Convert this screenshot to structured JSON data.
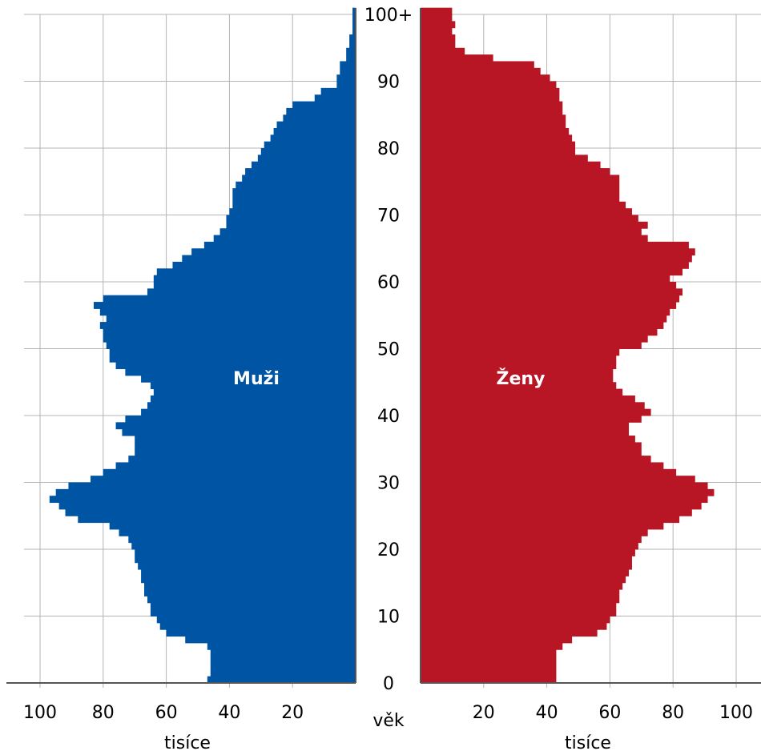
{
  "chart_data": {
    "type": "bar",
    "orientation": "horizontal-population-pyramid",
    "age_axis": {
      "label": "věk",
      "min": 0,
      "max": 100,
      "top_label": "100+",
      "ticks": [
        "0",
        "10",
        "20",
        "30",
        "40",
        "50",
        "60",
        "70",
        "80",
        "90",
        "100+"
      ]
    },
    "value_axis": {
      "label": "tisíce",
      "range": [
        0,
        100
      ],
      "ticks": [
        "20",
        "40",
        "60",
        "80",
        "100"
      ]
    },
    "grid": true,
    "colors": {
      "men": "#0054a4",
      "women": "#b81624",
      "grid": "#b4b4b4",
      "axis": "#555555"
    },
    "series": [
      {
        "name": "Muži",
        "values": [
          47,
          46,
          46,
          46,
          46,
          47,
          54,
          60,
          62,
          63,
          65,
          65,
          66,
          67,
          67,
          68,
          68,
          69,
          70,
          70,
          71,
          72,
          75,
          78,
          88,
          92,
          94,
          97,
          95,
          91,
          84,
          80,
          76,
          72,
          70,
          70,
          70,
          74,
          76,
          73,
          68,
          66,
          65,
          64,
          65,
          68,
          73,
          76,
          78,
          78,
          79,
          80,
          80,
          81,
          79,
          81,
          83,
          80,
          66,
          64,
          64,
          63,
          58,
          55,
          52,
          48,
          45,
          43,
          41,
          41,
          40,
          39,
          39,
          39,
          38,
          36,
          35,
          33,
          31,
          30,
          29,
          27,
          26,
          25,
          23,
          22,
          20,
          13,
          11,
          6,
          6,
          5,
          5,
          3,
          3,
          2,
          2,
          1,
          1,
          1,
          1
        ]
      },
      {
        "name": "Ženy",
        "values": [
          43,
          43,
          43,
          43,
          43,
          45,
          48,
          56,
          59,
          60,
          62,
          62,
          63,
          63,
          64,
          65,
          66,
          67,
          67,
          68,
          69,
          70,
          72,
          77,
          82,
          86,
          89,
          91,
          93,
          91,
          87,
          81,
          77,
          73,
          70,
          70,
          68,
          66,
          66,
          70,
          73,
          71,
          68,
          64,
          62,
          61,
          61,
          62,
          62,
          63,
          70,
          72,
          75,
          77,
          78,
          79,
          81,
          82,
          83,
          81,
          79,
          83,
          85,
          86,
          87,
          85,
          72,
          70,
          72,
          69,
          67,
          65,
          63,
          63,
          63,
          63,
          60,
          57,
          53,
          49,
          49,
          48,
          47,
          46,
          46,
          45,
          45,
          44,
          44,
          43,
          41,
          38,
          36,
          23,
          14,
          11,
          11,
          10,
          11,
          10,
          10
        ]
      }
    ]
  }
}
